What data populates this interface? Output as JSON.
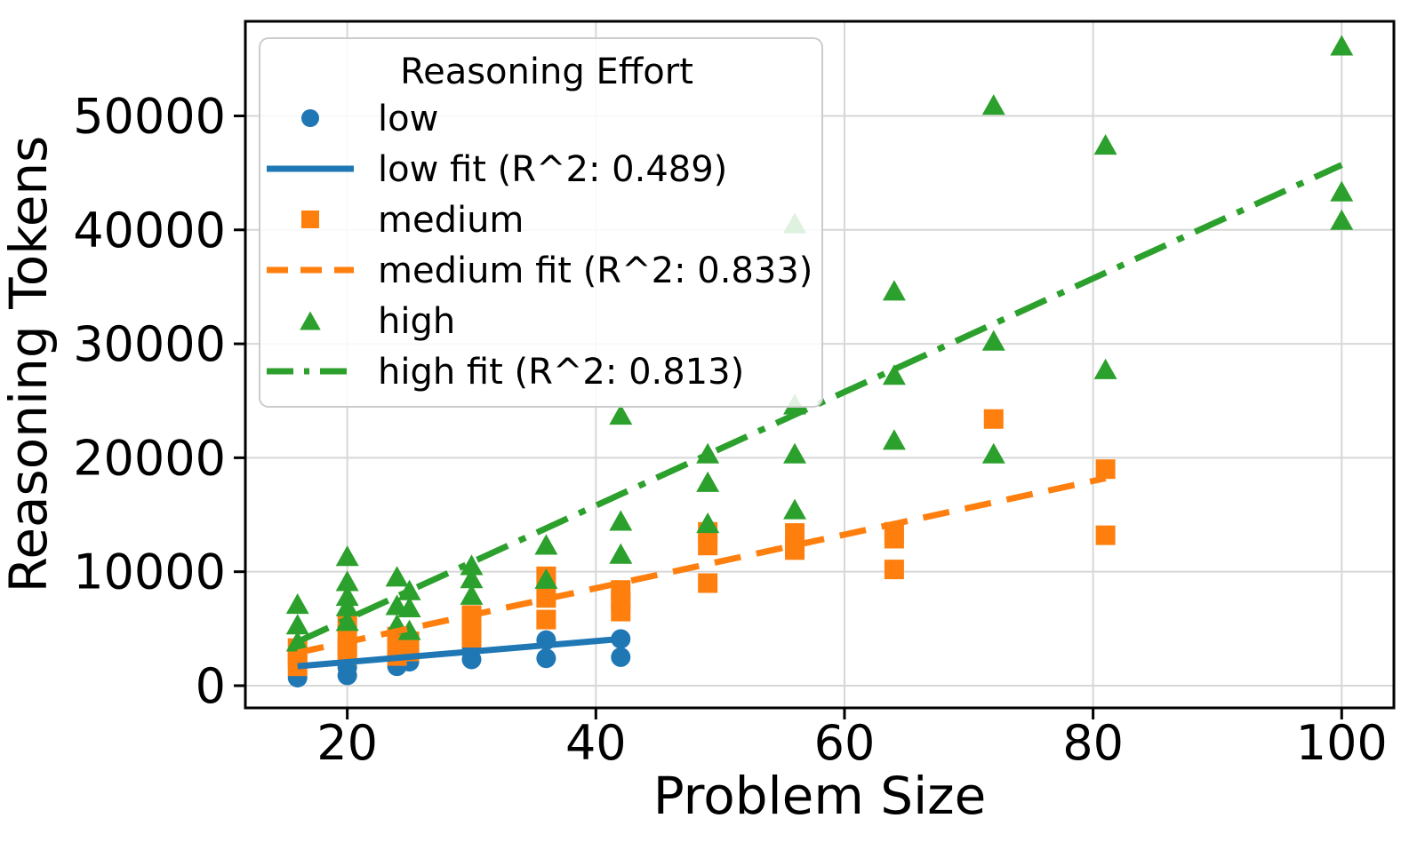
{
  "figure": {
    "background": "#ffffff",
    "grid_color": "#d7d7d7",
    "spine_color": "#000000",
    "legend_bg": "#ffffff",
    "legend_border": "#cccccc"
  },
  "chart_data": {
    "type": "scatter",
    "title": "",
    "xlabel": "Problem Size",
    "ylabel": "Reasoning Tokens",
    "xlim": [
      11.8,
      104.2
    ],
    "ylim": [
      -1950,
      58300
    ],
    "xticks": [
      20,
      40,
      60,
      80,
      100
    ],
    "yticks": [
      0,
      10000,
      20000,
      30000,
      40000,
      50000
    ],
    "xtick_labels": [
      "20",
      "40",
      "60",
      "80",
      "100"
    ],
    "ytick_labels": [
      "0",
      "10000",
      "20000",
      "30000",
      "40000",
      "50000"
    ],
    "grid": true,
    "legend": {
      "title": "Reasoning Effort",
      "position": "upper-left"
    },
    "series": [
      {
        "name": "low",
        "kind": "scatter",
        "marker": "circle",
        "color": "#1f77b4",
        "points": [
          [
            16,
            700
          ],
          [
            20,
            1600
          ],
          [
            20,
            900
          ],
          [
            24,
            1700
          ],
          [
            25,
            2100
          ],
          [
            30,
            3400
          ],
          [
            30,
            2300
          ],
          [
            36,
            4000
          ],
          [
            36,
            2400
          ],
          [
            42,
            4100
          ],
          [
            42,
            2500
          ]
        ]
      },
      {
        "name": "low fit (R^2: 0.489)",
        "kind": "line",
        "dash": "solid",
        "color": "#1f77b4",
        "x": [
          16,
          42
        ],
        "y": [
          1700,
          4100
        ],
        "r_squared": 0.489
      },
      {
        "name": "medium",
        "kind": "scatter",
        "marker": "square",
        "color": "#ff7f0e",
        "points": [
          [
            16,
            3300
          ],
          [
            16,
            2500
          ],
          [
            16,
            1700
          ],
          [
            20,
            5500
          ],
          [
            20,
            4400
          ],
          [
            20,
            3400
          ],
          [
            20,
            2700
          ],
          [
            24,
            4300
          ],
          [
            24,
            3400
          ],
          [
            24,
            2600
          ],
          [
            25,
            3900
          ],
          [
            25,
            3000
          ],
          [
            30,
            6200
          ],
          [
            30,
            5200
          ],
          [
            30,
            4200
          ],
          [
            36,
            9600
          ],
          [
            36,
            7700
          ],
          [
            36,
            5800
          ],
          [
            42,
            8400
          ],
          [
            42,
            7400
          ],
          [
            42,
            6500
          ],
          [
            49,
            13500
          ],
          [
            49,
            12300
          ],
          [
            49,
            9000
          ],
          [
            56,
            13400
          ],
          [
            56,
            12200
          ],
          [
            56,
            11900
          ],
          [
            64,
            13500
          ],
          [
            64,
            12900
          ],
          [
            64,
            10200
          ],
          [
            72,
            23400
          ],
          [
            81,
            19000
          ],
          [
            81,
            13200
          ]
        ]
      },
      {
        "name": "medium fit (R^2: 0.833)",
        "kind": "line",
        "dash": "dashed",
        "color": "#ff7f0e",
        "x": [
          16,
          81
        ],
        "y": [
          2900,
          18200
        ],
        "r_squared": 0.833
      },
      {
        "name": "high",
        "kind": "scatter",
        "marker": "triangle",
        "color": "#2ca02c",
        "points": [
          [
            16,
            7200
          ],
          [
            16,
            5400
          ],
          [
            16,
            3900
          ],
          [
            20,
            11400
          ],
          [
            20,
            9200
          ],
          [
            20,
            7900
          ],
          [
            20,
            7000
          ],
          [
            20,
            5700
          ],
          [
            24,
            9600
          ],
          [
            24,
            7100
          ],
          [
            24,
            5400
          ],
          [
            25,
            8400
          ],
          [
            25,
            6900
          ],
          [
            25,
            4900
          ],
          [
            30,
            10600
          ],
          [
            30,
            9450
          ],
          [
            30,
            8000
          ],
          [
            36,
            12400
          ],
          [
            36,
            9400
          ],
          [
            42,
            23800
          ],
          [
            42,
            14500
          ],
          [
            42,
            11600
          ],
          [
            49,
            20400
          ],
          [
            49,
            17900
          ],
          [
            49,
            14300
          ],
          [
            56,
            40600
          ],
          [
            56,
            24700
          ],
          [
            56,
            20400
          ],
          [
            56,
            15500
          ],
          [
            64,
            34700
          ],
          [
            64,
            27300
          ],
          [
            64,
            21600
          ],
          [
            72,
            51000
          ],
          [
            72,
            30300
          ],
          [
            72,
            20400
          ],
          [
            81,
            47500
          ],
          [
            81,
            27800
          ],
          [
            100,
            56200
          ],
          [
            100,
            43400
          ],
          [
            100,
            40900
          ]
        ]
      },
      {
        "name": "high fit (R^2: 0.813)",
        "kind": "line",
        "dash": "dashdot",
        "color": "#2ca02c",
        "x": [
          16,
          100
        ],
        "y": [
          3850,
          45700
        ],
        "r_squared": 0.813
      }
    ]
  }
}
